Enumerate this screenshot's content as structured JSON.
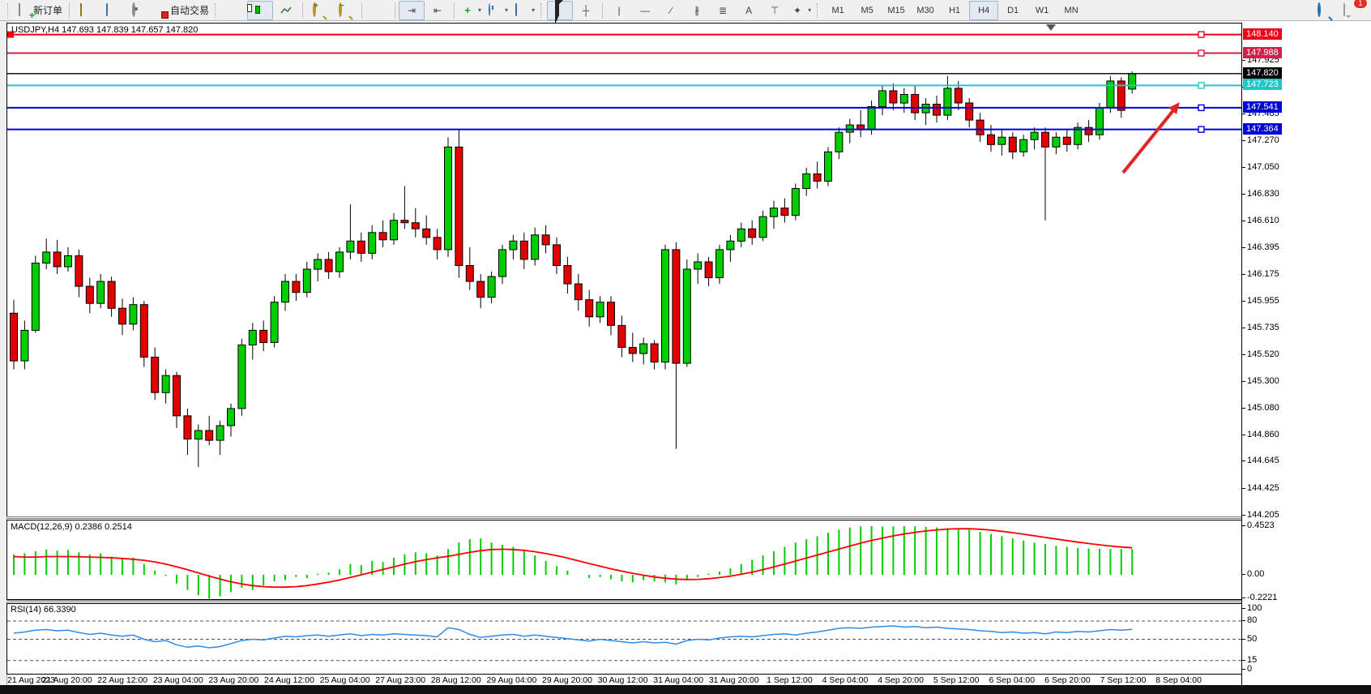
{
  "toolbar": {
    "new_order_label": "新订单",
    "autotrade_label": "自动交易",
    "timeframes": [
      "M1",
      "M5",
      "M15",
      "M30",
      "H1",
      "H4",
      "D1",
      "W1",
      "MN"
    ],
    "active_timeframe": "H4",
    "notification_count": "1",
    "icon_names": [
      "new-order-icon",
      "gold-bars-icon",
      "chart-window-icon",
      "signal-icon",
      "autotrade-icon",
      "bar-chart-icon",
      "candlestick-chart-icon",
      "line-chart-icon",
      "zoom-in-icon",
      "zoom-out-icon",
      "tile-windows-icon",
      "chart-shift-icon",
      "auto-scroll-icon",
      "indicators-icon",
      "periods-icon",
      "templates-icon",
      "cursor-icon",
      "crosshair-icon",
      "vertical-line-icon",
      "horizontal-line-icon",
      "trendline-icon",
      "channel-icon",
      "fibonacci-icon",
      "text-icon",
      "text-label-icon",
      "arrows-icon",
      "search-icon",
      "notifications-icon"
    ]
  },
  "chart": {
    "title": "USDJPY,H4  147.693 147.839 147.657 147.820",
    "symbol": "USDJPY",
    "timeframe": "H4",
    "ohlc": {
      "open": "147.693",
      "high": "147.839",
      "low": "147.657",
      "close": "147.820"
    }
  },
  "indicators": {
    "macd_label": "MACD(12,26,9) 0.2386 0.2514",
    "rsi_label": "RSI(14) 66.3390"
  },
  "annotations": {
    "arrow_color": "#e02424",
    "arrow_direction": "up-right"
  },
  "chart_data": {
    "type": "candlestick",
    "title": "USDJPY,H4",
    "price_axis_ticks": [
      "147.925",
      "147.705",
      "147.485",
      "147.270",
      "147.050",
      "146.830",
      "146.610",
      "146.395",
      "146.175",
      "145.955",
      "145.735",
      "145.520",
      "145.300",
      "145.080",
      "144.860",
      "144.645",
      "144.425",
      "144.205"
    ],
    "time_labels": [
      "21 Aug 2023",
      "21 Aug 20:00",
      "22 Aug 12:00",
      "23 Aug 04:00",
      "23 Aug 20:00",
      "24 Aug 12:00",
      "25 Aug 04:00",
      "27 Aug 23:00",
      "28 Aug 12:00",
      "29 Aug 04:00",
      "29 Aug 20:00",
      "30 Aug 12:00",
      "31 Aug 04:00",
      "31 Aug 20:00",
      "1 Sep 12:00",
      "4 Sep 04:00",
      "4 Sep 20:00",
      "5 Sep 12:00",
      "6 Sep 04:00",
      "6 Sep 20:00",
      "7 Sep 12:00",
      "8 Sep 04:00"
    ],
    "hlines": [
      {
        "price": 148.14,
        "label": "148.140",
        "color": "#f00018"
      },
      {
        "price": 147.988,
        "label": "147.988",
        "color": "#d2204a"
      },
      {
        "price": 147.82,
        "label": "147.820",
        "color": "#000000",
        "is_current_price": true
      },
      {
        "price": 147.723,
        "label": "147.723",
        "color": "#20c8c8"
      },
      {
        "price": 147.541,
        "label": "147.541",
        "color": "#0000d8"
      },
      {
        "price": 147.364,
        "label": "147.364",
        "color": "#0000d8"
      }
    ],
    "current_price": 147.82,
    "ylim": [
      144.19,
      148.23
    ],
    "colors": {
      "bull": "#00ce00",
      "bear": "#e30000",
      "wick": "#000000",
      "macd_hist": "#00ce00",
      "macd_signal": "#ff0000",
      "rsi_line": "#2e8ce8"
    },
    "candles": [
      [
        145.86,
        145.97,
        145.4,
        145.47
      ],
      [
        145.47,
        145.8,
        145.4,
        145.72
      ],
      [
        145.72,
        146.33,
        145.7,
        146.27
      ],
      [
        146.27,
        146.47,
        146.22,
        146.36
      ],
      [
        146.36,
        146.46,
        146.18,
        146.24
      ],
      [
        146.24,
        146.4,
        146.2,
        146.33
      ],
      [
        146.33,
        146.38,
        145.99,
        146.08
      ],
      [
        146.08,
        146.15,
        145.86,
        145.94
      ],
      [
        145.94,
        146.18,
        145.9,
        146.12
      ],
      [
        146.12,
        146.16,
        145.83,
        145.9
      ],
      [
        145.9,
        145.98,
        145.68,
        145.77
      ],
      [
        145.77,
        145.99,
        145.72,
        145.93
      ],
      [
        145.93,
        145.96,
        145.42,
        145.5
      ],
      [
        145.5,
        145.58,
        145.15,
        145.21
      ],
      [
        145.21,
        145.4,
        145.12,
        145.35
      ],
      [
        145.35,
        145.38,
        144.92,
        145.02
      ],
      [
        145.02,
        145.08,
        144.7,
        144.83
      ],
      [
        144.83,
        144.95,
        144.6,
        144.9
      ],
      [
        144.9,
        145.02,
        144.78,
        144.82
      ],
      [
        144.82,
        144.98,
        144.7,
        144.94
      ],
      [
        144.94,
        145.12,
        144.85,
        145.08
      ],
      [
        145.08,
        145.65,
        145.02,
        145.6
      ],
      [
        145.6,
        145.78,
        145.48,
        145.72
      ],
      [
        145.72,
        145.8,
        145.55,
        145.62
      ],
      [
        145.62,
        146.0,
        145.58,
        145.95
      ],
      [
        145.95,
        146.18,
        145.88,
        146.12
      ],
      [
        146.12,
        146.18,
        145.96,
        146.03
      ],
      [
        146.03,
        146.28,
        145.99,
        146.22
      ],
      [
        146.22,
        146.35,
        146.12,
        146.3
      ],
      [
        146.3,
        146.36,
        146.14,
        146.2
      ],
      [
        146.2,
        146.4,
        146.15,
        146.36
      ],
      [
        146.36,
        146.75,
        146.3,
        146.45
      ],
      [
        146.45,
        146.52,
        146.28,
        146.35
      ],
      [
        146.35,
        146.58,
        146.3,
        146.52
      ],
      [
        146.52,
        146.62,
        146.4,
        146.46
      ],
      [
        146.46,
        146.68,
        146.42,
        146.62
      ],
      [
        146.62,
        146.9,
        146.55,
        146.6
      ],
      [
        146.6,
        146.72,
        146.48,
        146.55
      ],
      [
        146.55,
        146.66,
        146.42,
        146.48
      ],
      [
        146.48,
        146.55,
        146.3,
        146.38
      ],
      [
        146.38,
        147.3,
        146.32,
        147.22
      ],
      [
        147.22,
        147.36,
        146.15,
        146.25
      ],
      [
        146.25,
        146.4,
        146.05,
        146.12
      ],
      [
        146.12,
        146.18,
        145.9,
        145.99
      ],
      [
        145.99,
        146.2,
        145.94,
        146.16
      ],
      [
        146.16,
        146.42,
        146.1,
        146.38
      ],
      [
        146.38,
        146.5,
        146.3,
        146.45
      ],
      [
        146.45,
        146.52,
        146.22,
        146.3
      ],
      [
        146.3,
        146.56,
        146.25,
        146.5
      ],
      [
        146.5,
        146.58,
        146.35,
        146.42
      ],
      [
        146.42,
        146.48,
        146.18,
        146.25
      ],
      [
        146.25,
        146.32,
        146.02,
        146.1
      ],
      [
        146.1,
        146.18,
        145.88,
        145.97
      ],
      [
        145.97,
        146.05,
        145.75,
        145.83
      ],
      [
        145.83,
        146.0,
        145.78,
        145.95
      ],
      [
        145.95,
        146.0,
        145.68,
        145.76
      ],
      [
        145.76,
        145.84,
        145.5,
        145.58
      ],
      [
        145.58,
        145.7,
        145.46,
        145.53
      ],
      [
        145.53,
        145.66,
        145.44,
        145.61
      ],
      [
        145.61,
        145.64,
        145.4,
        145.46
      ],
      [
        145.46,
        146.42,
        145.4,
        146.38
      ],
      [
        146.38,
        146.44,
        144.75,
        145.45
      ],
      [
        145.45,
        146.3,
        145.42,
        146.22
      ],
      [
        146.22,
        146.35,
        146.1,
        146.28
      ],
      [
        146.28,
        146.32,
        146.08,
        146.15
      ],
      [
        146.15,
        146.42,
        146.1,
        146.38
      ],
      [
        146.38,
        146.5,
        146.28,
        146.45
      ],
      [
        146.45,
        146.6,
        146.4,
        146.55
      ],
      [
        146.55,
        146.62,
        146.42,
        146.48
      ],
      [
        146.48,
        146.7,
        146.45,
        146.65
      ],
      [
        146.65,
        146.78,
        146.55,
        146.72
      ],
      [
        146.72,
        146.8,
        146.6,
        146.66
      ],
      [
        146.66,
        146.92,
        146.62,
        146.88
      ],
      [
        146.88,
        147.05,
        146.82,
        147.0
      ],
      [
        147.0,
        147.1,
        146.88,
        146.94
      ],
      [
        146.94,
        147.22,
        146.9,
        147.18
      ],
      [
        147.18,
        147.38,
        147.12,
        147.34
      ],
      [
        147.34,
        147.45,
        147.25,
        147.4
      ],
      [
        147.4,
        147.52,
        147.3,
        147.36
      ],
      [
        147.36,
        147.6,
        147.32,
        147.55
      ],
      [
        147.55,
        147.72,
        147.48,
        147.68
      ],
      [
        147.68,
        147.74,
        147.52,
        147.58
      ],
      [
        147.58,
        147.7,
        147.5,
        147.65
      ],
      [
        147.65,
        147.72,
        147.44,
        147.5
      ],
      [
        147.5,
        147.62,
        147.4,
        147.57
      ],
      [
        147.57,
        147.64,
        147.42,
        147.48
      ],
      [
        147.48,
        147.8,
        147.44,
        147.7
      ],
      [
        147.7,
        147.76,
        147.52,
        147.58
      ],
      [
        147.58,
        147.62,
        147.38,
        147.44
      ],
      [
        147.44,
        147.5,
        147.26,
        147.32
      ],
      [
        147.32,
        147.4,
        147.18,
        147.24
      ],
      [
        147.24,
        147.36,
        147.15,
        147.3
      ],
      [
        147.3,
        147.34,
        147.12,
        147.18
      ],
      [
        147.18,
        147.32,
        147.14,
        147.28
      ],
      [
        147.28,
        147.38,
        147.2,
        147.34
      ],
      [
        147.34,
        147.38,
        146.62,
        147.22
      ],
      [
        147.22,
        147.34,
        147.16,
        147.3
      ],
      [
        147.3,
        147.36,
        147.18,
        147.24
      ],
      [
        147.24,
        147.42,
        147.2,
        147.38
      ],
      [
        147.38,
        147.44,
        147.26,
        147.32
      ],
      [
        147.32,
        147.58,
        147.28,
        147.54
      ],
      [
        147.54,
        147.8,
        147.5,
        147.76
      ],
      [
        147.76,
        147.79,
        147.46,
        147.52
      ],
      [
        147.693,
        147.839,
        147.657,
        147.82
      ]
    ],
    "macd": {
      "params": "12,26,9",
      "main_value": 0.2386,
      "signal_value": 0.2514,
      "axis_ticks": [
        {
          "v": 0.4523,
          "label": "0.4523"
        },
        {
          "v": 0.0,
          "label": "0.00"
        },
        {
          "v": -0.2221,
          "label": "-0.2221"
        }
      ],
      "histogram": [
        0.19,
        0.2,
        0.22,
        0.235,
        0.225,
        0.23,
        0.21,
        0.19,
        0.2,
        0.17,
        0.15,
        0.16,
        0.1,
        0.04,
        -0.01,
        -0.08,
        -0.14,
        -0.19,
        -0.2221,
        -0.2,
        -0.16,
        -0.12,
        -0.14,
        -0.1,
        -0.06,
        -0.05,
        -0.02,
        -0.03,
        0.01,
        0.02,
        0.05,
        0.1,
        0.09,
        0.13,
        0.12,
        0.16,
        0.19,
        0.21,
        0.2,
        0.18,
        0.24,
        0.3,
        0.33,
        0.34,
        0.3,
        0.28,
        0.26,
        0.22,
        0.18,
        0.13,
        0.08,
        0.04,
        0.0,
        -0.03,
        -0.02,
        -0.04,
        -0.06,
        -0.07,
        -0.05,
        -0.06,
        -0.07,
        -0.09,
        -0.05,
        -0.02,
        0.01,
        0.03,
        0.06,
        0.1,
        0.14,
        0.18,
        0.22,
        0.26,
        0.3,
        0.33,
        0.36,
        0.39,
        0.42,
        0.44,
        0.45,
        0.4523,
        0.448,
        0.45,
        0.452,
        0.45,
        0.445,
        0.44,
        0.435,
        0.43,
        0.42,
        0.4,
        0.38,
        0.36,
        0.34,
        0.32,
        0.3,
        0.285,
        0.27,
        0.26,
        0.25,
        0.245,
        0.242,
        0.24,
        0.239,
        0.2386
      ],
      "signal_line": [
        0.17,
        0.165,
        0.165,
        0.17,
        0.17,
        0.17,
        0.168,
        0.165,
        0.162,
        0.158,
        0.152,
        0.145,
        0.135,
        0.12,
        0.1,
        0.075,
        0.048,
        0.018,
        -0.012,
        -0.04,
        -0.065,
        -0.085,
        -0.1,
        -0.11,
        -0.115,
        -0.115,
        -0.11,
        -0.1,
        -0.085,
        -0.068,
        -0.048,
        -0.025,
        0.0,
        0.025,
        0.05,
        0.075,
        0.1,
        0.122,
        0.142,
        0.158,
        0.172,
        0.19,
        0.21,
        0.225,
        0.235,
        0.238,
        0.235,
        0.228,
        0.215,
        0.198,
        0.178,
        0.155,
        0.13,
        0.105,
        0.08,
        0.056,
        0.034,
        0.014,
        -0.004,
        -0.02,
        -0.032,
        -0.04,
        -0.044,
        -0.042,
        -0.036,
        -0.026,
        -0.012,
        0.005,
        0.025,
        0.048,
        0.073,
        0.1,
        0.128,
        0.156,
        0.184,
        0.212,
        0.24,
        0.268,
        0.295,
        0.32,
        0.342,
        0.362,
        0.38,
        0.395,
        0.408,
        0.418,
        0.425,
        0.428,
        0.428,
        0.424,
        0.416,
        0.405,
        0.392,
        0.378,
        0.363,
        0.348,
        0.333,
        0.318,
        0.304,
        0.291,
        0.279,
        0.268,
        0.259,
        0.2514
      ]
    },
    "rsi": {
      "period": "14",
      "value": 66.339,
      "axis_ticks": [
        {
          "v": 100,
          "label": "100"
        },
        {
          "v": 80,
          "label": "80"
        },
        {
          "v": 50,
          "label": "50"
        },
        {
          "v": 15,
          "label": "15"
        },
        {
          "v": 0,
          "label": "0"
        }
      ],
      "levels": [
        80,
        50,
        15
      ],
      "values": [
        60,
        62,
        65,
        66,
        64,
        65,
        61,
        58,
        60,
        57,
        55,
        57,
        50,
        46,
        48,
        41,
        37,
        39,
        36,
        38,
        43,
        48,
        50,
        49,
        52,
        55,
        54,
        56,
        57,
        55,
        57,
        59,
        56,
        58,
        57,
        59,
        58,
        57,
        56,
        54,
        69,
        66,
        58,
        53,
        55,
        57,
        58,
        55,
        57,
        55,
        53,
        51,
        49,
        47,
        50,
        48,
        46,
        44,
        46,
        44,
        45,
        42,
        48,
        50,
        49,
        52,
        54,
        55,
        54,
        56,
        58,
        59,
        57,
        60,
        62,
        65,
        68,
        69,
        68,
        70,
        71,
        72,
        70,
        71,
        69,
        70,
        68,
        67,
        66,
        64,
        63,
        61,
        62,
        60,
        61,
        59,
        62,
        61,
        63,
        62,
        64,
        66,
        65,
        66.34
      ]
    }
  }
}
